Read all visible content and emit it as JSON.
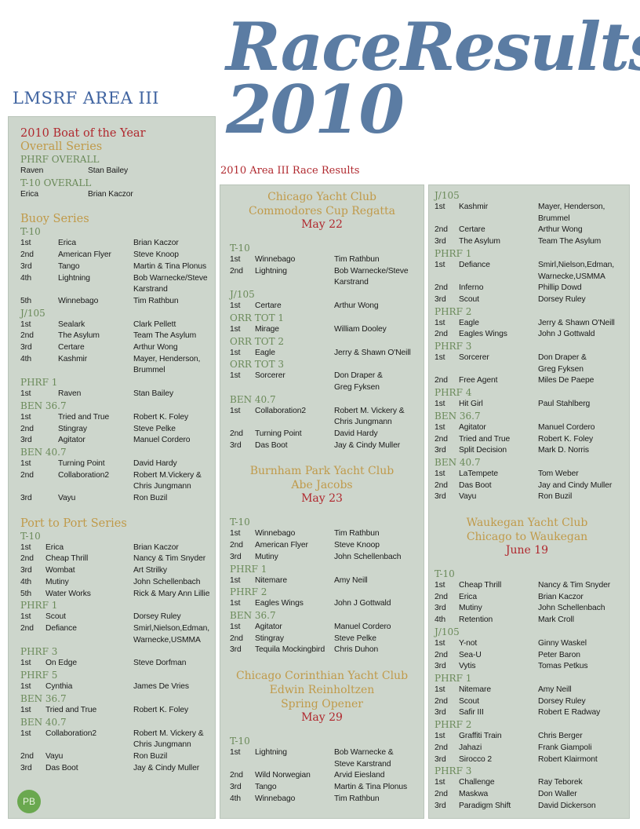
{
  "header": {
    "org": "LMSRF AREA III",
    "title_line1": "RaceResults",
    "title_line2": "2010",
    "subtitle": "2010 Area III Race Results"
  },
  "badge": "PB",
  "colors": {
    "title_blue": "#5b7ca3",
    "red": "#b0282e",
    "gold": "#c09a4a",
    "green": "#6b8a5a",
    "panel": "#cdd6cc"
  },
  "columns": [
    {
      "groups": [
        {
          "items": [
            {
              "kind": "title",
              "text": "2010 Boat of the Year"
            },
            {
              "kind": "series",
              "text": "Overall Series"
            },
            {
              "kind": "class",
              "text": "PHRF OVERALL"
            },
            {
              "kind": "pair",
              "boat": "Raven",
              "skipper": "Stan Bailey"
            },
            {
              "kind": "class",
              "text": "T-10 OVERALL"
            },
            {
              "kind": "pair",
              "boat": "Erica",
              "skipper": "Brian Kaczor"
            }
          ]
        },
        {
          "items": [
            {
              "kind": "series",
              "text": "Buoy Series"
            },
            {
              "kind": "class",
              "text": "T-10"
            },
            {
              "kind": "row",
              "place": "1st",
              "boat": "Erica",
              "skipper": "Brian Kaczor"
            },
            {
              "kind": "row",
              "place": "2nd",
              "boat": "American Flyer",
              "skipper": "Steve Knoop"
            },
            {
              "kind": "row",
              "place": "3rd",
              "boat": "Tango",
              "skipper": "Martin & Tina Plonus"
            },
            {
              "kind": "row",
              "place": "4th",
              "boat": "Lightning",
              "skipper": "Bob Warnecke/Steve\nKarstrand"
            },
            {
              "kind": "row",
              "place": "5th",
              "boat": "Winnebago",
              "skipper": "Tim Rathbun"
            },
            {
              "kind": "class",
              "text": "J/105"
            },
            {
              "kind": "row",
              "place": "1st",
              "boat": "Sealark",
              "skipper": "Clark Pellett"
            },
            {
              "kind": "row",
              "place": "2nd",
              "boat": "The Asylum",
              "skipper": "Team The Asylum"
            },
            {
              "kind": "row",
              "place": "3rd",
              "boat": "Certare",
              "skipper": "Arthur Wong"
            },
            {
              "kind": "row",
              "place": "4th",
              "boat": "Kashmir",
              "skipper": "Mayer, Henderson,\nBrummel"
            },
            {
              "kind": "class",
              "text": "PHRF 1"
            },
            {
              "kind": "row",
              "place": "1st",
              "boat": "Raven",
              "skipper": "Stan Bailey"
            },
            {
              "kind": "class",
              "text": "BEN 36.7"
            },
            {
              "kind": "row",
              "place": "1st",
              "boat": "Tried and True",
              "skipper": "Robert K. Foley"
            },
            {
              "kind": "row",
              "place": "2nd",
              "boat": "Stingray",
              "skipper": "Steve Pelke"
            },
            {
              "kind": "row",
              "place": "3rd",
              "boat": "Agitator",
              "skipper": "Manuel Cordero"
            },
            {
              "kind": "class",
              "text": "BEN 40.7"
            },
            {
              "kind": "row",
              "place": "1st",
              "boat": "Turning Point",
              "skipper": "David Hardy"
            },
            {
              "kind": "row",
              "place": "2nd",
              "boat": "Collaboration2",
              "skipper": "Robert M.Vickery &\nChris Jungmann"
            },
            {
              "kind": "row",
              "place": "3rd",
              "boat": "Vayu",
              "skipper": "Ron Buzil"
            }
          ]
        },
        {
          "items": [
            {
              "kind": "series",
              "text": "Port to Port Series"
            },
            {
              "kind": "class",
              "text": "T-10"
            },
            {
              "kind": "row",
              "place": "1st",
              "boat": "Erica",
              "skipper": "Brian Kaczor"
            },
            {
              "kind": "row",
              "place": "2nd",
              "boat": "Cheap Thrill",
              "skipper": "Nancy & Tim Snyder"
            },
            {
              "kind": "row",
              "place": "3rd",
              "boat": "Wombat",
              "skipper": "Art Strilky"
            },
            {
              "kind": "row",
              "place": "4th",
              "boat": "Mutiny",
              "skipper": "John Schellenbach"
            },
            {
              "kind": "row",
              "place": "5th",
              "boat": "Water Works",
              "skipper": "Rick & Mary Ann Lillie"
            },
            {
              "kind": "class",
              "text": "PHRF 1"
            },
            {
              "kind": "row",
              "place": "1st",
              "boat": "Scout",
              "skipper": "Dorsey Ruley"
            },
            {
              "kind": "row",
              "place": "2nd",
              "boat": "Defiance",
              "skipper": "Smirl,Nielson,Edman,\nWarnecke,USMMA"
            },
            {
              "kind": "class",
              "text": "PHRF 3"
            },
            {
              "kind": "row",
              "place": "1st",
              "boat": "On Edge",
              "skipper": "Steve Dorfman"
            },
            {
              "kind": "class",
              "text": "PHRF 5"
            },
            {
              "kind": "row",
              "place": "1st",
              "boat": "Cynthia",
              "skipper": "James De Vries"
            },
            {
              "kind": "class",
              "text": "BEN 36.7"
            },
            {
              "kind": "row",
              "place": "1st",
              "boat": "Tried and True",
              "skipper": "Robert K. Foley"
            },
            {
              "kind": "class",
              "text": "BEN 40.7"
            },
            {
              "kind": "row",
              "place": "1st",
              "boat": "Collaboration2",
              "skipper": "Robert M. Vickery &\nChris Jungmann"
            },
            {
              "kind": "row",
              "place": "2nd",
              "boat": "Vayu",
              "skipper": "Ron Buzil"
            },
            {
              "kind": "row",
              "place": "3rd",
              "boat": "Das Boot",
              "skipper": "Jay & Cindy Muller"
            }
          ]
        }
      ]
    },
    {
      "groups": [
        {
          "items": [
            {
              "kind": "event",
              "lines": [
                "Chicago Yacht Club",
                "Commodores Cup Regatta"
              ],
              "date": "May 22"
            },
            {
              "kind": "class",
              "text": "T-10"
            },
            {
              "kind": "row",
              "place": "1st",
              "boat": "Winnebago",
              "skipper": "Tim Rathbun"
            },
            {
              "kind": "row",
              "place": "2nd",
              "boat": "Lightning",
              "skipper": "Bob Warnecke/Steve\nKarstrand"
            },
            {
              "kind": "class",
              "text": "J/105"
            },
            {
              "kind": "row",
              "place": "1st",
              "boat": "Certare",
              "skipper": "Arthur Wong"
            },
            {
              "kind": "class",
              "text": "ORR TOT 1"
            },
            {
              "kind": "row",
              "place": "1st",
              "boat": "Mirage",
              "skipper": "William Dooley"
            },
            {
              "kind": "class",
              "text": "ORR TOT 2"
            },
            {
              "kind": "row",
              "place": "1st",
              "boat": "Eagle",
              "skipper": "Jerry & Shawn O'Neill"
            },
            {
              "kind": "class",
              "text": "ORR TOT 3"
            },
            {
              "kind": "row",
              "place": "1st",
              "boat": "Sorcerer",
              "skipper": "Don Draper &\nGreg Fyksen"
            },
            {
              "kind": "class",
              "text": "BEN 40.7"
            },
            {
              "kind": "row",
              "place": "1st",
              "boat": "Collaboration2",
              "skipper": "Robert M. Vickery &\nChris Jungmann"
            },
            {
              "kind": "row",
              "place": "2nd",
              "boat": "Turning Point",
              "skipper": "David Hardy"
            },
            {
              "kind": "row",
              "place": "3rd",
              "boat": "Das Boot",
              "skipper": "Jay & Cindy Muller"
            }
          ]
        },
        {
          "items": [
            {
              "kind": "event",
              "lines": [
                "Burnham Park Yacht Club",
                "Abe Jacobs"
              ],
              "date": "May 23"
            },
            {
              "kind": "class",
              "text": "T-10"
            },
            {
              "kind": "row",
              "place": "1st",
              "boat": "Winnebago",
              "skipper": "Tim Rathbun"
            },
            {
              "kind": "row",
              "place": "2nd",
              "boat": "American Flyer",
              "skipper": "Steve Knoop"
            },
            {
              "kind": "row",
              "place": "3rd",
              "boat": "Mutiny",
              "skipper": "John Schellenbach"
            },
            {
              "kind": "class",
              "text": "PHRF 1"
            },
            {
              "kind": "row",
              "place": "1st",
              "boat": "Nitemare",
              "skipper": "Amy Neill"
            },
            {
              "kind": "class",
              "text": "PHRF 2"
            },
            {
              "kind": "row",
              "place": "1st",
              "boat": "Eagles Wings",
              "skipper": "John J Gottwald"
            },
            {
              "kind": "class",
              "text": "BEN 36.7"
            },
            {
              "kind": "row",
              "place": "1st",
              "boat": "Agitator",
              "skipper": "Manuel Cordero"
            },
            {
              "kind": "row",
              "place": "2nd",
              "boat": "Stingray",
              "skipper": "Steve Pelke"
            },
            {
              "kind": "row",
              "place": "3rd",
              "boat": "Tequila Mockingbird",
              "skipper": "Chris Duhon"
            }
          ]
        },
        {
          "items": [
            {
              "kind": "event",
              "lines": [
                "Chicago Corinthian Yacht Club",
                "Edwin Reinholtzen",
                "Spring Opener"
              ],
              "date": "May 29"
            },
            {
              "kind": "class",
              "text": "T-10"
            },
            {
              "kind": "row",
              "place": "1st",
              "boat": "Lightning",
              "skipper": "Bob Warnecke &\nSteve Karstrand"
            },
            {
              "kind": "row",
              "place": "2nd",
              "boat": "Wild Norwegian",
              "skipper": "Arvid Eiesland"
            },
            {
              "kind": "row",
              "place": "3rd",
              "boat": "Tango",
              "skipper": "Martin & Tina Plonus"
            },
            {
              "kind": "row",
              "place": "4th",
              "boat": "Winnebago",
              "skipper": "Tim Rathbun"
            }
          ]
        }
      ]
    },
    {
      "groups": [
        {
          "items": [
            {
              "kind": "class",
              "text": "J/105"
            },
            {
              "kind": "row",
              "place": "1st",
              "boat": "Kashmir",
              "skipper": "Mayer, Henderson,\nBrummel"
            },
            {
              "kind": "row",
              "place": "2nd",
              "boat": "Certare",
              "skipper": "Arthur Wong"
            },
            {
              "kind": "row",
              "place": "3rd",
              "boat": "The Asylum",
              "skipper": "Team The Asylum"
            },
            {
              "kind": "class",
              "text": "PHRF 1"
            },
            {
              "kind": "row",
              "place": "1st",
              "boat": "Defiance",
              "skipper": "Smirl,Nielson,Edman,\nWarnecke,USMMA"
            },
            {
              "kind": "row",
              "place": "2nd",
              "boat": "Inferno",
              "skipper": "Phillip Dowd"
            },
            {
              "kind": "row",
              "place": "3rd",
              "boat": "Scout",
              "skipper": "Dorsey Ruley"
            },
            {
              "kind": "class",
              "text": "PHRF 2"
            },
            {
              "kind": "row",
              "place": "1st",
              "boat": "Eagle",
              "skipper": "Jerry & Shawn O'Neill"
            },
            {
              "kind": "row",
              "place": "2nd",
              "boat": "Eagles Wings",
              "skipper": "John J Gottwald"
            },
            {
              "kind": "class",
              "text": "PHRF 3"
            },
            {
              "kind": "row",
              "place": "1st",
              "boat": "Sorcerer",
              "skipper": "Don Draper &\nGreg Fyksen"
            },
            {
              "kind": "row",
              "place": "2nd",
              "boat": "Free Agent",
              "skipper": "Miles De Paepe"
            },
            {
              "kind": "class",
              "text": "PHRF 4"
            },
            {
              "kind": "row",
              "place": "1st",
              "boat": "Hit Girl",
              "skipper": "Paul Stahlberg"
            },
            {
              "kind": "class",
              "text": "BEN 36.7"
            },
            {
              "kind": "row",
              "place": "1st",
              "boat": "Agitator",
              "skipper": "Manuel Cordero"
            },
            {
              "kind": "row",
              "place": "2nd",
              "boat": "Tried and True",
              "skipper": "Robert K. Foley"
            },
            {
              "kind": "row",
              "place": "3rd",
              "boat": "Split Decision",
              "skipper": "Mark D. Norris"
            },
            {
              "kind": "class",
              "text": "BEN 40.7"
            },
            {
              "kind": "row",
              "place": "1st",
              "boat": "LaTempete",
              "skipper": "Tom Weber"
            },
            {
              "kind": "row",
              "place": "2nd",
              "boat": "Das Boot",
              "skipper": "Jay and Cindy Muller"
            },
            {
              "kind": "row",
              "place": "3rd",
              "boat": "Vayu",
              "skipper": "Ron Buzil"
            }
          ]
        },
        {
          "items": [
            {
              "kind": "event",
              "lines": [
                "Waukegan Yacht Club",
                "Chicago to Waukegan"
              ],
              "date": "June 19"
            },
            {
              "kind": "class",
              "text": "T-10"
            },
            {
              "kind": "row",
              "place": "1st",
              "boat": "Cheap Thrill",
              "skipper": "Nancy & Tim Snyder"
            },
            {
              "kind": "row",
              "place": "2nd",
              "boat": "Erica",
              "skipper": "Brian Kaczor"
            },
            {
              "kind": "row",
              "place": "3rd",
              "boat": "Mutiny",
              "skipper": "John Schellenbach"
            },
            {
              "kind": "row",
              "place": "4th",
              "boat": "Retention",
              "skipper": "Mark Croll"
            },
            {
              "kind": "class",
              "text": "J/105"
            },
            {
              "kind": "row",
              "place": "1st",
              "boat": "Y-not",
              "skipper": "Ginny Waskel"
            },
            {
              "kind": "row",
              "place": "2nd",
              "boat": "Sea-U",
              "skipper": "Peter Baron"
            },
            {
              "kind": "row",
              "place": "3rd",
              "boat": "Vytis",
              "skipper": "Tomas Petkus"
            },
            {
              "kind": "class",
              "text": "PHRF 1"
            },
            {
              "kind": "row",
              "place": "1st",
              "boat": "Nitemare",
              "skipper": "Amy Neill"
            },
            {
              "kind": "row",
              "place": "2nd",
              "boat": "Scout",
              "skipper": "Dorsey Ruley"
            },
            {
              "kind": "row",
              "place": "3rd",
              "boat": "Safir III",
              "skipper": "Robert E Radway"
            },
            {
              "kind": "class",
              "text": "PHRF 2"
            },
            {
              "kind": "row",
              "place": "1st",
              "boat": "Graffiti Train",
              "skipper": "Chris Berger"
            },
            {
              "kind": "row",
              "place": "2nd",
              "boat": "Jahazi",
              "skipper": "Frank Giampoli"
            },
            {
              "kind": "row",
              "place": "3rd",
              "boat": "Sirocco 2",
              "skipper": "Robert Klairmont"
            },
            {
              "kind": "class",
              "text": "PHRF 3"
            },
            {
              "kind": "row",
              "place": "1st",
              "boat": "Challenge",
              "skipper": "Ray Teborek"
            },
            {
              "kind": "row",
              "place": "2nd",
              "boat": "Maskwa",
              "skipper": "Don Waller"
            },
            {
              "kind": "row",
              "place": "3rd",
              "boat": "Paradigm Shift",
              "skipper": "David Dickerson"
            }
          ]
        }
      ]
    }
  ]
}
